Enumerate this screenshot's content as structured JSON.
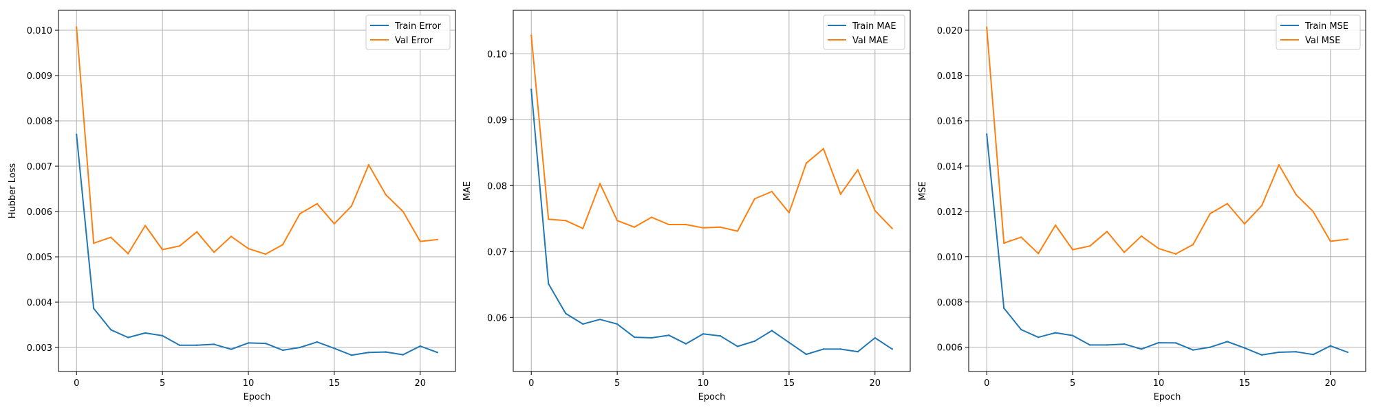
{
  "chart_data": [
    {
      "type": "line",
      "xlabel": "Epoch",
      "ylabel": "Hubber Loss",
      "xlim": [
        -1.05,
        22.05
      ],
      "ylim": [
        0.00247,
        0.01044
      ],
      "xticks": [
        0,
        5,
        10,
        15,
        20
      ],
      "yticks": [
        0.003,
        0.004,
        0.005,
        0.006,
        0.007,
        0.008,
        0.009,
        0.01
      ],
      "ytick_labels": [
        "0.003",
        "0.004",
        "0.005",
        "0.006",
        "0.007",
        "0.008",
        "0.009",
        "0.010"
      ],
      "grid": true,
      "legend": "upper right",
      "x": [
        0,
        1,
        2,
        3,
        4,
        5,
        6,
        7,
        8,
        9,
        10,
        11,
        12,
        13,
        14,
        15,
        16,
        17,
        18,
        19,
        20,
        21
      ],
      "series": [
        {
          "name": "Train Error",
          "color": "#1f77b4",
          "values": [
            0.0077,
            0.00386,
            0.00339,
            0.00322,
            0.00332,
            0.00326,
            0.00305,
            0.00305,
            0.00307,
            0.00296,
            0.0031,
            0.00309,
            0.00294,
            0.003,
            0.00312,
            0.00298,
            0.00283,
            0.00289,
            0.0029,
            0.00284,
            0.00303,
            0.00289
          ]
        },
        {
          "name": "Val Error",
          "color": "#ff7f0e",
          "values": [
            0.01007,
            0.0053,
            0.00543,
            0.00507,
            0.00569,
            0.00516,
            0.00524,
            0.00555,
            0.0051,
            0.00545,
            0.00518,
            0.00506,
            0.00527,
            0.00595,
            0.00617,
            0.00573,
            0.00612,
            0.00703,
            0.00637,
            0.006,
            0.00534,
            0.00538
          ]
        }
      ]
    },
    {
      "type": "line",
      "xlabel": "Epoch",
      "ylabel": "MAE",
      "xlim": [
        -1.05,
        22.05
      ],
      "ylim": [
        0.0518,
        0.1066
      ],
      "xticks": [
        0,
        5,
        10,
        15,
        20
      ],
      "yticks": [
        0.06,
        0.07,
        0.08,
        0.09,
        0.1
      ],
      "ytick_labels": [
        "0.06",
        "0.07",
        "0.08",
        "0.09",
        "0.10"
      ],
      "grid": true,
      "legend": "upper right",
      "x": [
        0,
        1,
        2,
        3,
        4,
        5,
        6,
        7,
        8,
        9,
        10,
        11,
        12,
        13,
        14,
        15,
        16,
        17,
        18,
        19,
        20,
        21
      ],
      "series": [
        {
          "name": "Train MAE",
          "color": "#1f77b4",
          "values": [
            0.0946,
            0.0651,
            0.0606,
            0.059,
            0.0597,
            0.059,
            0.057,
            0.0569,
            0.0573,
            0.056,
            0.0575,
            0.0572,
            0.0556,
            0.0564,
            0.058,
            0.0562,
            0.0544,
            0.0552,
            0.0552,
            0.0548,
            0.0569,
            0.0552
          ]
        },
        {
          "name": "Val MAE",
          "color": "#ff7f0e",
          "values": [
            0.1028,
            0.0749,
            0.0747,
            0.0735,
            0.0803,
            0.0747,
            0.0737,
            0.0752,
            0.0741,
            0.0741,
            0.0736,
            0.0737,
            0.0731,
            0.078,
            0.0791,
            0.0759,
            0.0834,
            0.0856,
            0.0787,
            0.0824,
            0.0762,
            0.0735
          ]
        }
      ]
    },
    {
      "type": "line",
      "xlabel": "Epoch",
      "ylabel": "MSE",
      "xlim": [
        -1.05,
        22.05
      ],
      "ylim": [
        0.00493,
        0.02088
      ],
      "xticks": [
        0,
        5,
        10,
        15,
        20
      ],
      "yticks": [
        0.006,
        0.008,
        0.01,
        0.012,
        0.014,
        0.016,
        0.018,
        0.02
      ],
      "ytick_labels": [
        "0.006",
        "0.008",
        "0.010",
        "0.012",
        "0.014",
        "0.016",
        "0.018",
        "0.020"
      ],
      "grid": true,
      "legend": "upper right",
      "x": [
        0,
        1,
        2,
        3,
        4,
        5,
        6,
        7,
        8,
        9,
        10,
        11,
        12,
        13,
        14,
        15,
        16,
        17,
        18,
        19,
        20,
        21
      ],
      "series": [
        {
          "name": "Train MSE",
          "color": "#1f77b4",
          "values": [
            0.01541,
            0.00773,
            0.00678,
            0.00644,
            0.00664,
            0.00652,
            0.0061,
            0.0061,
            0.00614,
            0.00592,
            0.0062,
            0.00619,
            0.00588,
            0.006,
            0.00625,
            0.00597,
            0.00566,
            0.00578,
            0.0058,
            0.00568,
            0.00606,
            0.00578
          ]
        },
        {
          "name": "Val MSE",
          "color": "#ff7f0e",
          "values": [
            0.02013,
            0.0106,
            0.01086,
            0.01014,
            0.01139,
            0.01031,
            0.01047,
            0.01111,
            0.01019,
            0.01091,
            0.01036,
            0.01012,
            0.01053,
            0.0119,
            0.01234,
            0.01145,
            0.01225,
            0.01405,
            0.01274,
            0.01199,
            0.01068,
            0.01077
          ]
        }
      ]
    }
  ]
}
